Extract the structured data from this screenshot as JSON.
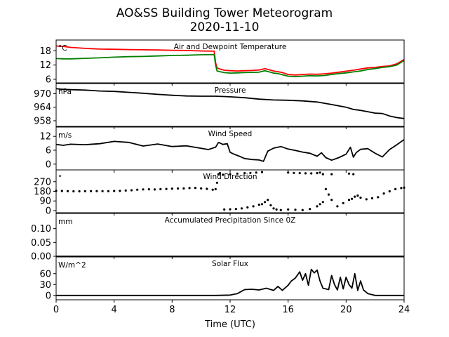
{
  "figure": {
    "title_line1": "AO&SS Building Tower Meteorogram",
    "title_line2": "2020-11-10",
    "xlabel": "Time (UTC)"
  },
  "chart_data": [
    {
      "type": "line",
      "id": "temperature",
      "title": "Air and Dewpoint Temperature",
      "unit": "°C",
      "ylim": [
        4.5,
        22.5
      ],
      "yticks": [
        6,
        12,
        18
      ],
      "ytick_labels": [
        "6",
        "12",
        "18"
      ],
      "xlim": [
        0,
        24
      ],
      "xticks": [
        0,
        4,
        8,
        12,
        16,
        20,
        24
      ],
      "series": [
        {
          "color": "#ff0000",
          "x": [
            0,
            0.5,
            1,
            2,
            3,
            4,
            5,
            6,
            7,
            8,
            9,
            10,
            10.9,
            11,
            11.1,
            11.3,
            11.6,
            12,
            12.5,
            13,
            13.5,
            14,
            14.4,
            14.7,
            15,
            15.3,
            15.6,
            16,
            16.5,
            17,
            17.5,
            18,
            18.5,
            19,
            19.5,
            20,
            20.5,
            21,
            21.5,
            22,
            22.5,
            23,
            23.5,
            24
          ],
          "y": [
            20,
            19.8,
            19.4,
            19,
            18.7,
            18.6,
            18.5,
            18.4,
            18.3,
            18.2,
            18.1,
            17.9,
            17.8,
            13,
            10.8,
            10.3,
            9.8,
            9.6,
            9.5,
            9.6,
            9.7,
            9.9,
            10.5,
            10,
            9.5,
            9.2,
            8.8,
            8,
            7.8,
            8,
            8.2,
            8.1,
            8.3,
            8.6,
            9,
            9.4,
            9.8,
            10.3,
            10.8,
            11,
            11.4,
            11.6,
            12.5,
            14.3
          ]
        },
        {
          "color": "#008000",
          "x": [
            0,
            0.5,
            1,
            2,
            3,
            4,
            5,
            6,
            7,
            8,
            9,
            10,
            10.9,
            11,
            11.1,
            11.3,
            11.6,
            12,
            12.5,
            13,
            13.5,
            14,
            14.4,
            14.7,
            15,
            15.3,
            15.6,
            16,
            16.5,
            17,
            17.5,
            18,
            18.5,
            19,
            19.5,
            20,
            20.5,
            21,
            21.5,
            22,
            22.5,
            23,
            23.5,
            24
          ],
          "y": [
            14.7,
            14.6,
            14.6,
            14.8,
            15,
            15.3,
            15.5,
            15.6,
            15.8,
            16,
            16.1,
            16.3,
            16.4,
            12,
            9.5,
            9.2,
            8.8,
            8.6,
            8.7,
            8.8,
            8.9,
            9,
            9.6,
            9.1,
            8.6,
            8.4,
            7.9,
            7.3,
            7.1,
            7.3,
            7.5,
            7.4,
            7.6,
            8,
            8.4,
            8.7,
            9.1,
            9.5,
            10.1,
            10.5,
            11,
            11.3,
            12,
            13.9
          ]
        }
      ]
    },
    {
      "type": "line",
      "id": "pressure",
      "title": "Pressure",
      "unit": "hPa",
      "ylim": [
        955.5,
        974.5
      ],
      "yticks": [
        958,
        964,
        970
      ],
      "ytick_labels": [
        "958",
        "964",
        "970"
      ],
      "xlim": [
        0,
        24
      ],
      "series": [
        {
          "color": "#000000",
          "x": [
            0,
            0.5,
            1,
            2,
            3,
            4,
            5,
            6,
            7,
            8,
            9,
            10,
            11,
            12,
            13,
            14,
            15,
            16,
            17,
            18,
            19,
            20,
            20.5,
            21,
            21.5,
            22,
            22.5,
            23,
            23.5,
            24
          ],
          "y": [
            972.2,
            971.9,
            971.8,
            971.6,
            971.2,
            971,
            970.6,
            970.2,
            969.7,
            969.3,
            969,
            968.9,
            968.9,
            968.6,
            968.2,
            967.6,
            967.2,
            967.1,
            966.8,
            966.3,
            965.2,
            964,
            963,
            962.6,
            962,
            961.4,
            961.2,
            960.1,
            959.4,
            959
          ]
        }
      ]
    },
    {
      "type": "line",
      "id": "wind_speed",
      "title": "Wind Speed",
      "unit": "m/s",
      "ylim": [
        -2.5,
        16
      ],
      "yticks": [
        0,
        6,
        12
      ],
      "ytick_labels": [
        "0",
        "6",
        "12"
      ],
      "xlim": [
        0,
        24
      ],
      "series": [
        {
          "color": "#000000",
          "x": [
            0,
            0.5,
            1,
            2,
            3,
            4,
            5,
            6,
            7,
            8,
            9,
            10,
            10.5,
            11,
            11.2,
            11.5,
            11.8,
            12,
            12.3,
            12.6,
            13,
            13.5,
            14,
            14.3,
            14.6,
            15,
            15.5,
            16,
            16.5,
            17,
            17.5,
            18,
            18.3,
            18.6,
            19,
            19.5,
            20,
            20.3,
            20.5,
            20.7,
            21,
            21.5,
            22,
            22.5,
            23,
            23.5,
            24
          ],
          "y": [
            8.5,
            8.1,
            8.6,
            8.4,
            8.8,
            9.8,
            9.4,
            7.8,
            8.7,
            7.6,
            7.9,
            6.8,
            6.3,
            7.3,
            9.4,
            8.5,
            8.8,
            5.1,
            4.2,
            3.5,
            2.4,
            2,
            1.8,
            1.2,
            5.6,
            6.9,
            7.6,
            6.5,
            5.9,
            5.2,
            4.7,
            3.4,
            4.9,
            2.8,
            1.7,
            2.8,
            4.3,
            7.3,
            3,
            5,
            6.4,
            6.7,
            4.7,
            3.1,
            6.3,
            8.4,
            10.6
          ]
        }
      ]
    },
    {
      "type": "scatter",
      "id": "wind_direction",
      "title": "Wind Direction",
      "unit": "°",
      "ylim": [
        -20,
        380
      ],
      "yticks": [
        0,
        90,
        180,
        270
      ],
      "ytick_labels": [
        "0",
        "90",
        "180",
        "270"
      ],
      "xlim": [
        0,
        24
      ],
      "series": [
        {
          "color": "#000000",
          "x": [
            0,
            0.4,
            0.8,
            1.2,
            1.6,
            2,
            2.4,
            2.8,
            3.2,
            3.6,
            4,
            4.4,
            4.8,
            5.2,
            5.6,
            6,
            6.4,
            6.8,
            7.2,
            7.6,
            8,
            8.4,
            8.8,
            9.2,
            9.6,
            10,
            10.4,
            10.8,
            11,
            11.1,
            11.2,
            11.3,
            11.6,
            12,
            12.4,
            12.8,
            13.2,
            13.6,
            14,
            14.2,
            14.4,
            14.6,
            14.8,
            15,
            15.2,
            15.5,
            16,
            16.4,
            16.8,
            17.2,
            17.6,
            18,
            18.2,
            18.4,
            18.6,
            18.8,
            19,
            19.4,
            19.8,
            20.2,
            20.4,
            20.6,
            20.8,
            21,
            21.4,
            21.8,
            22.2,
            22.6,
            23,
            23.4,
            23.8,
            24,
            11.5,
            12,
            12.5,
            13,
            13.4,
            13.8,
            14.2,
            16,
            16.5,
            17,
            17.5,
            18,
            18.2,
            18.4,
            19,
            20.2,
            20.5
          ],
          "y": [
            185,
            183,
            182,
            180,
            180,
            181,
            182,
            182,
            181,
            181,
            183,
            184,
            187,
            190,
            195,
            198,
            199,
            197,
            200,
            202,
            205,
            206,
            207,
            210,
            212,
            207,
            203,
            195,
            200,
            260,
            340,
            350,
            10,
            12,
            15,
            20,
            30,
            40,
            55,
            60,
            80,
            100,
            50,
            20,
            10,
            5,
            355,
            352,
            350,
            348,
            347,
            350,
            355,
            340,
            200,
            150,
            100,
            40,
            70,
            100,
            110,
            130,
            140,
            120,
            105,
            115,
            125,
            160,
            180,
            200,
            210,
            215,
            335,
            340,
            345,
            350,
            352,
            355,
            360,
            10,
            8,
            5,
            15,
            40,
            60,
            80,
            340,
            345,
            340
          ]
        }
      ]
    },
    {
      "type": "line",
      "id": "precipitation",
      "title": "Accumulated Precipitation Since 0Z",
      "unit": "mm",
      "ylim": [
        0,
        0.155
      ],
      "yticks": [
        0,
        0.05,
        0.1
      ],
      "ytick_labels": [
        "0.00",
        "0.05",
        "0.10"
      ],
      "xlim": [
        0,
        24
      ],
      "series": [
        {
          "color": "#000000",
          "x": [
            0,
            24
          ],
          "y": [
            0,
            0
          ]
        }
      ]
    },
    {
      "type": "line",
      "id": "solar_flux",
      "title": "Solar Flux",
      "unit": "W/m^2",
      "ylim": [
        -12,
        106
      ],
      "yticks": [
        0,
        30,
        60
      ],
      "ytick_labels": [
        "0",
        "30",
        "60"
      ],
      "xlim": [
        0,
        24
      ],
      "xticks": [
        0,
        4,
        8,
        12,
        16,
        20,
        24
      ],
      "xtick_labels": [
        "0",
        "4",
        "8",
        "12",
        "16",
        "20",
        "24"
      ],
      "series": [
        {
          "color": "#000000",
          "x": [
            0,
            4,
            8,
            11,
            12,
            12.5,
            13,
            13.5,
            14,
            14.5,
            15,
            15.3,
            15.6,
            16,
            16.2,
            16.5,
            16.8,
            17,
            17.2,
            17.4,
            17.6,
            17.8,
            18,
            18.2,
            18.4,
            18.6,
            18.8,
            19,
            19.2,
            19.4,
            19.6,
            19.8,
            20,
            20.2,
            20.4,
            20.6,
            20.8,
            21,
            21.2,
            21.5,
            22,
            23,
            24
          ],
          "y": [
            0,
            0,
            0,
            0,
            1,
            5,
            16,
            17,
            15,
            20,
            14,
            25,
            14,
            28,
            39,
            48,
            65,
            42,
            60,
            28,
            72,
            62,
            70,
            40,
            20,
            18,
            16,
            55,
            30,
            15,
            50,
            18,
            50,
            30,
            20,
            60,
            14,
            40,
            15,
            5,
            0,
            0,
            0
          ]
        }
      ]
    }
  ]
}
